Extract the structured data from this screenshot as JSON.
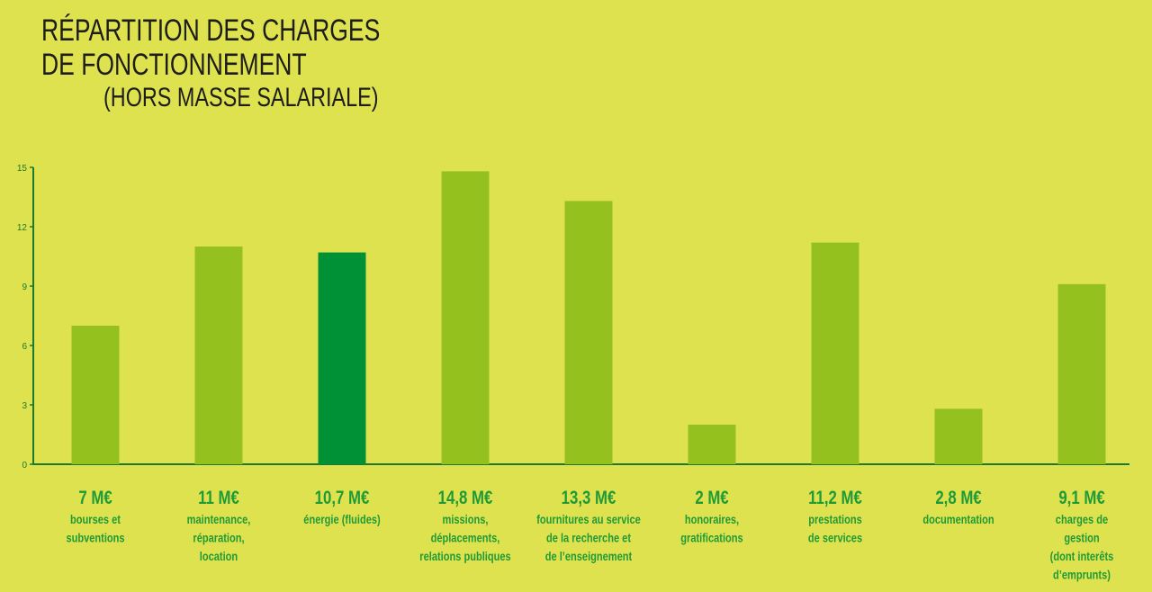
{
  "title_lines": [
    "RÉPARTITION DES CHARGES",
    "DE FONCTIONNEMENT"
  ],
  "subtitle": "(HORS MASSE SALARIALE)",
  "colors": {
    "background": "#dee24f",
    "bar": "#95c11f",
    "bar_highlight": "#009036",
    "axis": "#1b7a2e",
    "label": "#1f9a37"
  },
  "chart_data": {
    "type": "bar",
    "title": "RÉPARTITION DES CHARGES DE FONCTIONNEMENT",
    "subtitle": "(HORS MASSE SALARIALE)",
    "xlabel": "",
    "ylabel": "",
    "ylim": [
      0,
      15
    ],
    "yticks": [
      0,
      3,
      6,
      9,
      12,
      15
    ],
    "grid": false,
    "legend": "none",
    "categories": [
      [
        "bourses et",
        "subventions"
      ],
      [
        "maintenance,",
        "réparation,",
        "location"
      ],
      [
        "énergie (fluides)"
      ],
      [
        "missions,",
        "déplacements,",
        "relations publiques"
      ],
      [
        "fournitures au service",
        "de la recherche et",
        "de l’enseignement"
      ],
      [
        "honoraires,",
        "gratifications"
      ],
      [
        "prestations",
        "de services"
      ],
      [
        "documentation"
      ],
      [
        "charges de",
        "gestion",
        "(dont interêts",
        "d’emprunts)"
      ]
    ],
    "values": [
      7,
      11,
      10.7,
      14.8,
      13.3,
      2,
      11.2,
      2.8,
      9.1
    ],
    "value_labels": [
      "7 M€",
      "11 M€",
      "10,7 M€",
      "14,8 M€",
      "13,3 M€",
      "2 M€",
      "11,2 M€",
      "2,8 M€",
      "9,1 M€"
    ],
    "highlight_index": 2
  }
}
